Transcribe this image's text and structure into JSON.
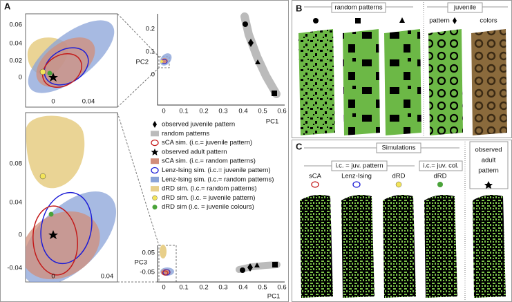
{
  "panels": {
    "A": {
      "label": "A",
      "zoom_top": {
        "yticks": [
          "0.06",
          "0.04",
          "0.02",
          "0"
        ],
        "xticks": [
          "0",
          "0.04"
        ]
      },
      "zoom_bottom": {
        "yticks": [
          "0.08",
          "0.04",
          "0",
          "-0.04"
        ],
        "xticks": [
          "0",
          "0.04"
        ]
      },
      "pc12": {
        "ylabel": "PC2",
        "xlabel": "PC1",
        "yticks": [
          "0.2",
          "0.1",
          "0"
        ],
        "xticks": [
          "0",
          "0.1",
          "0.2",
          "0.3",
          "0.4",
          "0.5",
          "0.6"
        ]
      },
      "pc13": {
        "ylabel": "PC3",
        "xlabel": "PC1",
        "yticks": [
          "0.05",
          "-0.05"
        ],
        "xticks": [
          "0",
          "0.1",
          "0.2",
          "0.3",
          "0.4",
          "0.5",
          "0.6"
        ]
      },
      "legend": [
        "observed juvenile pattern",
        "random patterns",
        "sCA sim. (i.c.= juvenile pattern)",
        "observed adult pattern",
        "sCA sim. (i.c.= random patterns)",
        "Lenz-Ising sim. (i.c.= juvenile pattern)",
        "Lenz-Ising sim. (i.c.= random patterns)",
        "dRD sim. (i.c.= random patterns)",
        "dRD sim. (i.c. = juvenile pattern)",
        "dRD sim (i.c. = juvenile colours)"
      ]
    },
    "B": {
      "label": "B",
      "heading": "random patterns",
      "juvenile_heading": "juvenile",
      "pattern_label": "pattern",
      "colors_label": "colors"
    },
    "C": {
      "label": "C",
      "heading": "Simulations",
      "ic_juv_pattern": "i.c. = juv. pattern",
      "ic_juv_col": "i.c.= juv. col.",
      "columns": [
        "sCA",
        "Lenz-Ising",
        "dRD",
        "dRD"
      ],
      "observed": [
        "observed",
        "adult",
        "pattern"
      ]
    }
  }
}
